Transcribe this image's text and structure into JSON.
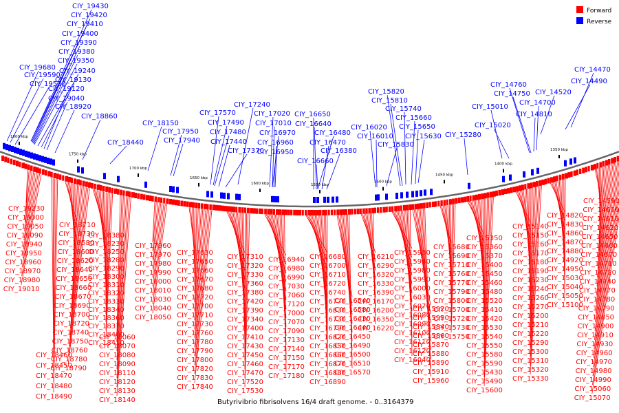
{
  "caption": "Butyrivibrio fibrisolvens 16/4 draft genome. - 0..3164379",
  "legend": [
    {
      "label": "Forward",
      "color": "#ff0000"
    },
    {
      "label": "Reverse",
      "color": "#0000ff"
    }
  ],
  "colors": {
    "forward": "#ff0000",
    "reverse": "#0000ff",
    "backbone": "#666666"
  },
  "ruler_ticks": [
    "1800 kbp",
    "1750 kbp",
    "1700 kbp",
    "1650 kbp",
    "1600 kbp",
    "1550 kbp",
    "1500 kbp",
    "1450 kbp",
    "1400 kbp",
    "1350 kbp"
  ],
  "reverse_labels": [
    "CIY_19430",
    "CIY_19420",
    "CIY_19410",
    "CIY_19400",
    "CIY_19390",
    "CIY_19380",
    "CIY_19350",
    "CIY_19680",
    "CIY_19590",
    "CIY_19240",
    "CIY_19530",
    "CIY_19130",
    "CIY_19120",
    "CIY_19040",
    "CIY_18920",
    "CIY_18860",
    "CIY_18440",
    "CIY_18150",
    "CIY_17950",
    "CIY_17940",
    "CIY_17240",
    "CIY_17570",
    "CIY_17490",
    "CIY_17480",
    "CIY_17440",
    "CIY_17370",
    "CIY_17020",
    "CIY_17010",
    "CIY_16970",
    "CIY_16960",
    "CIY_16950",
    "CIY_16650",
    "CIY_16640",
    "CIY_16480",
    "CIY_16470",
    "CIY_16380",
    "CIY_16660",
    "CIY_15820",
    "CIY_15810",
    "CIY_15740",
    "CIY_15660",
    "CIY_15650",
    "CIY_15630",
    "CIY_16020",
    "CIY_16010",
    "CIY_15830",
    "CIY_15280",
    "CIY_15010",
    "CIY_15020",
    "CIY_14760",
    "CIY_14750",
    "CIY_14810",
    "CIY_14700",
    "CIY_14520",
    "CIY_14470",
    "CIY_14490"
  ],
  "forward_labels": {
    "col1": [
      "CIY_19230",
      "CIY_19000",
      "CIY_19050",
      "CIY_19090",
      "CIY_18940",
      "CIY_18950",
      "CIY_18960",
      "CIY_18970",
      "CIY_18980",
      "CIY_19010"
    ],
    "col2": [
      "CIY_18710",
      "CIY_18730",
      "CIY_18580",
      "CIY_18600",
      "CIY_18620",
      "CIY_18640",
      "CIY_18650",
      "CIY_18660",
      "CIY_18670",
      "CIY_18690",
      "CIY_18700",
      "CIY_18720",
      "CIY_18740",
      "CIY_18750",
      "CIY_18760",
      "CIY_18780",
      "CIY_18790"
    ],
    "col3": [
      "CIY_18460",
      "CIY_18450",
      "CIY_18470",
      "CIY_18480",
      "CIY_18490"
    ],
    "col4": [
      "CIY_18380",
      "CIY_18230",
      "CIY_18250",
      "CIY_18280",
      "CIY_18290",
      "CIY_18300",
      "CIY_18310",
      "CIY_18320",
      "CIY_18330",
      "CIY_18340",
      "CIY_18360",
      "CIY_18370",
      "CIY_18400",
      "CIY_18410"
    ],
    "col5": [
      "CIY_18060",
      "CIY_18070",
      "CIY_18080",
      "CIY_18090",
      "CIY_18110",
      "CIY_18120",
      "CIY_18130",
      "CIY_18140",
      "CIY_18160"
    ],
    "col6": [
      "CIY_17960",
      "CIY_17970",
      "CIY_17980",
      "CIY_17990",
      "CIY_18000",
      "CIY_18010",
      "CIY_18030",
      "CIY_18040",
      "CIY_18050"
    ],
    "col7": [
      "CIY_17630",
      "CIY_17650",
      "CIY_17660",
      "CIY_17670",
      "CIY_17680",
      "CIY_17720",
      "CIY_17700",
      "CIY_17710",
      "CIY_17730",
      "CIY_17760",
      "CIY_17780",
      "CIY_17790",
      "CIY_17800",
      "CIY_17820",
      "CIY_17830",
      "CIY_17840"
    ],
    "col8": [
      "CIY_17310",
      "CIY_17320",
      "CIY_17330",
      "CIY_17360",
      "CIY_17380",
      "CIY_17420",
      "CIY_17390",
      "CIY_17340",
      "CIY_17400",
      "CIY_17410",
      "CIY_17430",
      "CIY_17450",
      "CIY_17460",
      "CIY_17470",
      "CIY_17520",
      "CIY_17530"
    ],
    "col9": [
      "CIY_16940",
      "CIY_16980",
      "CIY_16990",
      "CIY_17030",
      "CIY_17060",
      "CIY_17120",
      "CIY_17000",
      "CIY_17070",
      "CIY_17090",
      "CIY_17130",
      "CIY_17140",
      "CIY_17150",
      "CIY_17170",
      "CIY_17180"
    ],
    "col10": [
      "CIY_16680",
      "CIY_16700",
      "CIY_16710",
      "CIY_16720",
      "CIY_16740",
      "CIY_16770",
      "CIY_16830",
      "CIY_16730",
      "CIY_16790",
      "CIY_16820",
      "CIY_16850",
      "CIY_16860",
      "CIY_16870",
      "CIY_16880",
      "CIY_16890"
    ],
    "col11": [
      "CIY_16540",
      "CIY_16580",
      "CIY_16430",
      "CIY_16440",
      "CIY_16450",
      "CIY_16490",
      "CIY_16500",
      "CIY_16510",
      "CIY_16570"
    ],
    "col12": [
      "CIY_16210",
      "CIY_16290",
      "CIY_16320",
      "CIY_16330",
      "CIY_16390",
      "CIY_16170",
      "CIY_16200",
      "CIY_16350",
      "CIY_16220"
    ],
    "col13": [
      "CIY_15930",
      "CIY_15940",
      "CIY_15980",
      "CIY_15990",
      "CIY_16000",
      "CIY_16030",
      "CIY_16070",
      "CIY_16080",
      "CIY_16090",
      "CIY_16100",
      "CIY_16110",
      "CIY_16120",
      "CIY_16040"
    ],
    "col14": [
      "CIY_15920",
      "CIY_15950",
      "CIY_15840",
      "CIY_15860",
      "CIY_15870",
      "CIY_15880",
      "CIY_15890",
      "CIY_15910",
      "CIY_15960"
    ],
    "col15": [
      "CIY_15680",
      "CIY_15690",
      "CIY_15710",
      "CIY_15760",
      "CIY_15770",
      "CIY_15790",
      "CIY_15800",
      "CIY_15700",
      "CIY_15720",
      "CIY_15730",
      "CIY_15750"
    ],
    "col16": [
      "CIY_15350",
      "CIY_15360",
      "CIY_15370",
      "CIY_15400",
      "CIY_15450",
      "CIY_15460",
      "CIY_15480",
      "CIY_15520",
      "CIY_15410",
      "CIY_15420",
      "CIY_15530",
      "CIY_15540",
      "CIY_15550",
      "CIY_15580",
      "CIY_15590",
      "CIY_15430",
      "CIY_15490",
      "CIY_15600"
    ],
    "col17": [
      "CIY_15140",
      "CIY_15150",
      "CIY_15160",
      "CIY_15170",
      "CIY_15180",
      "CIY_15190",
      "CIY_15230",
      "CIY_15240",
      "CIY_15260",
      "CIY_15270",
      "CIY_15200",
      "CIY_15210",
      "CIY_15220",
      "CIY_15290",
      "CIY_15300",
      "CIY_15310",
      "CIY_15320",
      "CIY_15330"
    ],
    "col18": [
      "CIY_14820",
      "CIY_14830",
      "CIY_14860",
      "CIY_14870",
      "CIY_14880",
      "CIY_14920",
      "CIY_14950",
      "CIY_15030",
      "CIY_15040",
      "CIY_15050",
      "CIY_15100"
    ],
    "col19": [
      "CIY_14590",
      "CIY_14600",
      "CIY_14610",
      "CIY_14620",
      "CIY_14650",
      "CIY_14660",
      "CIY_14670",
      "CIY_14710",
      "CIY_14720",
      "CIY_14740",
      "CIY_14770",
      "CIY_14780",
      "CIY_14790",
      "CIY_14850",
      "CIY_14900",
      "CIY_14910",
      "CIY_14930",
      "CIY_14960",
      "CIY_14970",
      "CIY_14980",
      "CIY_14990",
      "CIY_15060",
      "CIY_15070"
    ]
  }
}
